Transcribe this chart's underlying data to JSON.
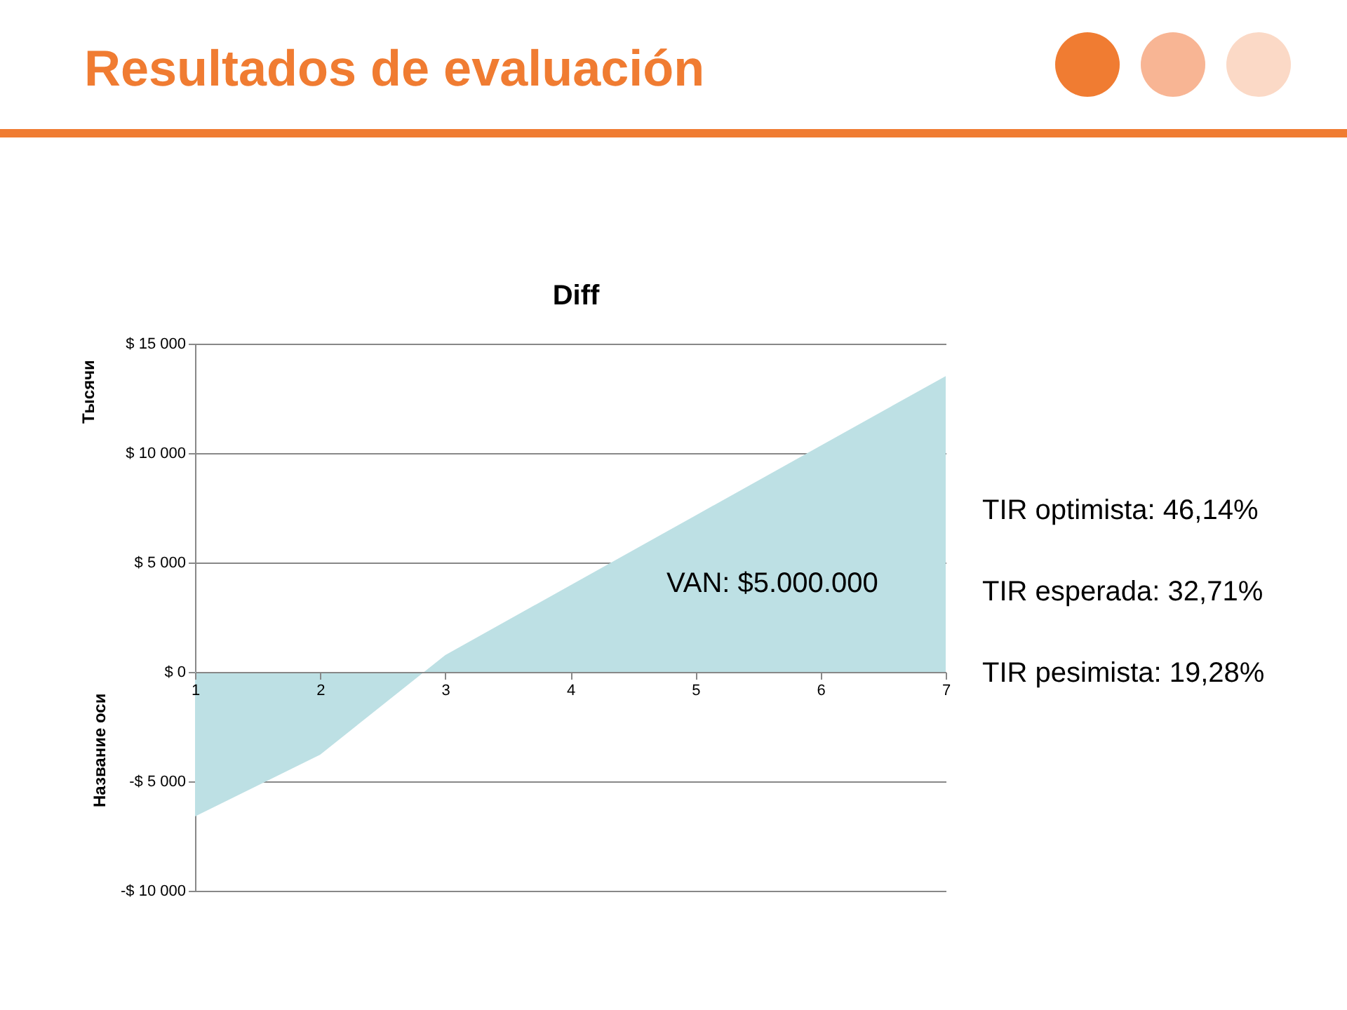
{
  "chart_data": {
    "type": "area",
    "title": "Resultados de evaluación",
    "subtitle": "Diff",
    "ylabel": "Название оси",
    "categories": [
      "1",
      "2",
      "3",
      "4",
      "5",
      "6",
      "7"
    ],
    "values": [
      -6600,
      -3780,
      770,
      3960,
      7150,
      10340,
      13520
    ],
    "color": "#bde0e4",
    "ylim": [
      -10000,
      15000
    ],
    "yticks": [
      {
        "value": -10000,
        "label": "-$ 10 000"
      },
      {
        "value": -5000,
        "label": "-$ 5 000"
      },
      {
        "value": 0,
        "label": "$ 0"
      },
      {
        "value": 5000,
        "label": "$ 5 000"
      },
      {
        "value": 10000,
        "label": "$ 10 000"
      },
      {
        "value": 15000,
        "label": "$ 15 000"
      }
    ],
    "grid": "y",
    "annotations": [
      "Тысячи",
      "VAN: $5.000.000",
      "TIR optimista: 46,14%",
      "TIR esperada: 32,71%",
      "TIR pesimista: 19,28%"
    ]
  }
}
